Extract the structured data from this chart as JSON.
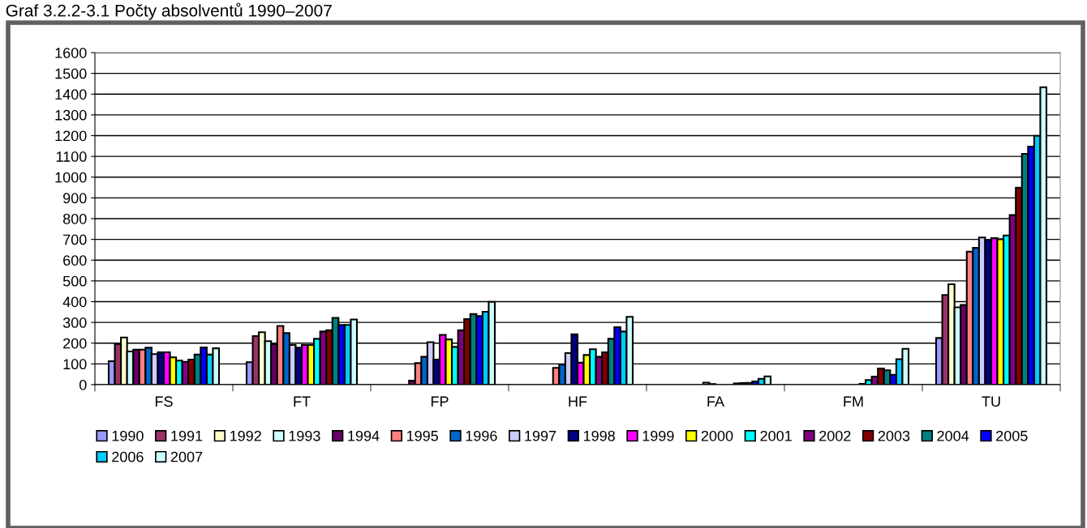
{
  "chart_data": {
    "type": "bar",
    "title": "Graf 3.2.2-3.1 Počty absolventů 1990–2007",
    "categories": [
      "FS",
      "FT",
      "FP",
      "HF",
      "FA",
      "FM",
      "TU"
    ],
    "ylim": [
      0,
      1600
    ],
    "yticks": [
      0,
      100,
      200,
      300,
      400,
      500,
      600,
      700,
      800,
      900,
      1000,
      1100,
      1200,
      1300,
      1400,
      1500,
      1600
    ],
    "grid": "y",
    "legend": "bottom",
    "series": [
      {
        "name": "1990",
        "color": "#9999ff",
        "values": [
          113,
          108,
          null,
          null,
          null,
          null,
          225
        ]
      },
      {
        "name": "1991",
        "color": "#993366",
        "values": [
          195,
          234,
          null,
          null,
          null,
          null,
          432
        ]
      },
      {
        "name": "1992",
        "color": "#ffffcc",
        "values": [
          227,
          253,
          null,
          null,
          null,
          null,
          484
        ]
      },
      {
        "name": "1993",
        "color": "#ccffff",
        "values": [
          160,
          210,
          null,
          null,
          null,
          null,
          373
        ]
      },
      {
        "name": "1994",
        "color": "#660066",
        "values": [
          169,
          195,
          19,
          null,
          null,
          null,
          384
        ]
      },
      {
        "name": "1995",
        "color": "#ff8080",
        "values": [
          169,
          283,
          104,
          81,
          null,
          null,
          641
        ]
      },
      {
        "name": "1996",
        "color": "#0066cc",
        "values": [
          178,
          249,
          134,
          97,
          null,
          null,
          659
        ]
      },
      {
        "name": "1997",
        "color": "#ccccff",
        "values": [
          147,
          191,
          205,
          152,
          10,
          null,
          709
        ]
      },
      {
        "name": "1998",
        "color": "#000080",
        "values": [
          156,
          178,
          121,
          243,
          3,
          null,
          698
        ]
      },
      {
        "name": "1999",
        "color": "#ff00ff",
        "values": [
          156,
          191,
          240,
          106,
          null,
          null,
          706
        ]
      },
      {
        "name": "2000",
        "color": "#ffff00",
        "values": [
          132,
          191,
          218,
          143,
          null,
          4,
          701
        ]
      },
      {
        "name": "2001",
        "color": "#00ffff",
        "values": [
          116,
          221,
          182,
          171,
          null,
          22,
          719
        ]
      },
      {
        "name": "2002",
        "color": "#800080",
        "values": [
          110,
          256,
          262,
          134,
          6,
          39,
          817
        ]
      },
      {
        "name": "2003",
        "color": "#800000",
        "values": [
          121,
          262,
          316,
          156,
          8,
          78,
          949
        ]
      },
      {
        "name": "2004",
        "color": "#008080",
        "values": [
          145,
          322,
          340,
          221,
          9,
          69,
          1112
        ]
      },
      {
        "name": "2005",
        "color": "#0000ff",
        "values": [
          179,
          288,
          331,
          277,
          15,
          48,
          1147
        ]
      },
      {
        "name": "2006",
        "color": "#00ccff",
        "values": [
          145,
          288,
          351,
          256,
          28,
          123,
          1199
        ]
      },
      {
        "name": "2007",
        "color": "#ccffff",
        "values": [
          175,
          314,
          399,
          327,
          40,
          173,
          1433
        ]
      }
    ]
  }
}
